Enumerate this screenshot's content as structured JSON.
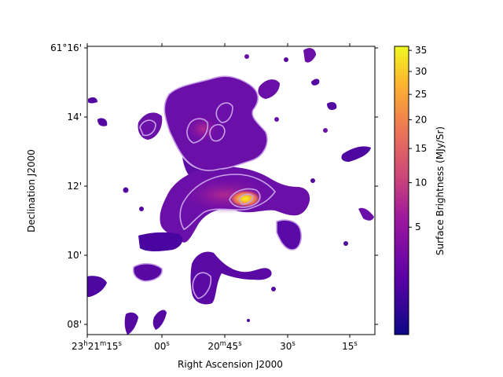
{
  "chart_data": {
    "type": "heatmap",
    "title": "",
    "xlabel": "Right Ascension J2000",
    "ylabel": "Declination J2000",
    "x_ticks": [
      {
        "h": "23",
        "m": "21",
        "s": "15",
        "label": "23h21m15s"
      },
      {
        "s": "00",
        "label": "00s"
      },
      {
        "m": "20",
        "s": "45",
        "label": "20m45s"
      },
      {
        "s": "30",
        "label": "30s"
      },
      {
        "s": "15",
        "label": "15s"
      }
    ],
    "y_ticks": [
      "61°16'",
      "14'",
      "12'",
      "10'",
      "08'"
    ],
    "colorbar": {
      "label": "Surface Brightness (MJy/Sr)",
      "colormap": "plasma",
      "scale": "sqrt",
      "range": [
        0,
        36
      ],
      "ticks": [
        5,
        10,
        15,
        20,
        25,
        30,
        35
      ],
      "tick_labels": [
        "5",
        "10",
        "15",
        "20",
        "25",
        "30",
        "35"
      ]
    },
    "contours": {
      "color": "#c8a0e8",
      "levels": 3
    },
    "colors": {
      "low": "#0d0887",
      "mid_low": "#6a00a8",
      "mid": "#b12a90",
      "mid_high": "#e16462",
      "high": "#fca636",
      "max": "#f0f921",
      "background": "#ffffff"
    }
  }
}
